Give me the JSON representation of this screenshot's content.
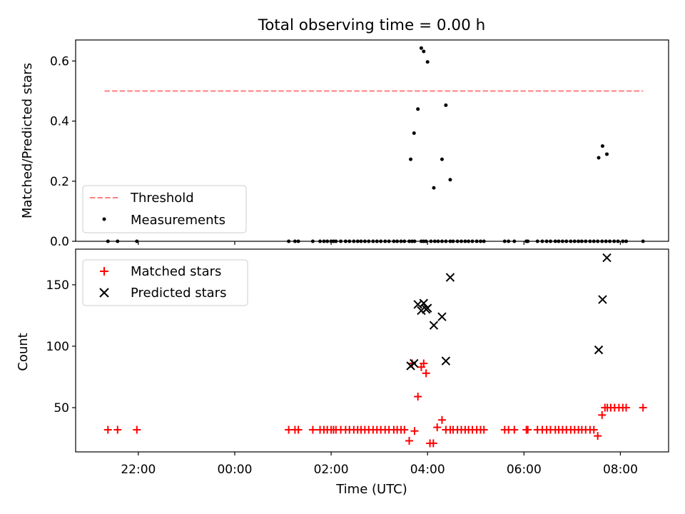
{
  "chart_data": [
    {
      "type": "scatter",
      "title": "Total observing time = 0.00 h",
      "xlabel": "",
      "ylabel": "Matched/Predicted stars",
      "ylim": [
        0,
        0.67
      ],
      "yticks": [
        0.0,
        0.2,
        0.4,
        0.6
      ],
      "ytick_labels": [
        "0.0",
        "0.2",
        "0.4",
        "0.6"
      ],
      "legend_placement": "lower-left",
      "threshold": {
        "name": "Threshold",
        "y": 0.5,
        "x_start": 21.3,
        "x_end": 32.47,
        "color": "#ff7f7f"
      },
      "measurements": {
        "name": "Measurements",
        "color": "#000000",
        "x": [
          21.37,
          21.57,
          21.97,
          25.12,
          25.25,
          25.32,
          25.62,
          25.77,
          25.85,
          25.92,
          26.0,
          26.05,
          26.1,
          26.2,
          26.3,
          26.38,
          26.47,
          26.55,
          26.62,
          26.7,
          26.78,
          26.87,
          26.95,
          27.03,
          27.12,
          27.2,
          27.3,
          27.37,
          27.45,
          27.52,
          27.62,
          27.68,
          27.73,
          27.87,
          27.92,
          27.97,
          28.07,
          28.15,
          28.22,
          28.3,
          28.38,
          28.47,
          28.53,
          28.62,
          28.7,
          28.78,
          28.85,
          28.93,
          29.02,
          29.1,
          29.17,
          29.6,
          29.68,
          29.8,
          30.05,
          30.08,
          30.28,
          30.38,
          30.47,
          30.55,
          30.65,
          30.72,
          30.8,
          30.88,
          30.97,
          31.05,
          31.13,
          31.2,
          31.28,
          31.37,
          31.45,
          31.53,
          31.62,
          31.7,
          31.78,
          31.87,
          31.95,
          32.05,
          32.12,
          32.47,
          27.65,
          27.72,
          27.8,
          27.87,
          27.92,
          28.0,
          28.13,
          28.3,
          28.38,
          28.47,
          31.55,
          31.63,
          31.72
        ],
        "y": [
          0,
          0,
          0,
          0,
          0,
          0,
          0,
          0,
          0,
          0,
          0,
          0,
          0,
          0,
          0,
          0,
          0,
          0,
          0,
          0,
          0,
          0,
          0,
          0,
          0,
          0,
          0,
          0,
          0,
          0,
          0,
          0,
          0,
          0,
          0,
          0,
          0,
          0,
          0,
          0,
          0,
          0,
          0,
          0,
          0,
          0,
          0,
          0,
          0,
          0,
          0,
          0,
          0,
          0,
          0,
          0,
          0,
          0,
          0,
          0,
          0,
          0,
          0,
          0,
          0,
          0,
          0,
          0,
          0,
          0,
          0,
          0,
          0,
          0,
          0,
          0,
          0,
          0,
          0,
          0,
          0.273,
          0.36,
          0.44,
          0.643,
          0.632,
          0.597,
          0.178,
          0.273,
          0.453,
          0.205,
          0.278,
          0.317,
          0.29
        ]
      }
    },
    {
      "type": "scatter",
      "xlabel": "Time (UTC)",
      "ylabel": "Count",
      "ylim": [
        14,
        179
      ],
      "yticks": [
        50,
        100,
        150
      ],
      "ytick_labels": [
        "50",
        "100",
        "150"
      ],
      "xticks": [
        22,
        24,
        26,
        28,
        30,
        32
      ],
      "xtick_labels": [
        "22:00",
        "00:00",
        "02:00",
        "04:00",
        "06:00",
        "08:00"
      ],
      "xlim": [
        20.7,
        33.0
      ],
      "legend_placement": "upper-left",
      "series": [
        {
          "name": "Matched stars",
          "marker": "plus",
          "color": "#ff0000",
          "x": [
            21.37,
            21.57,
            21.97,
            25.12,
            25.25,
            25.32,
            25.62,
            25.77,
            25.85,
            25.92,
            26.0,
            26.05,
            26.1,
            26.2,
            26.3,
            26.38,
            26.47,
            26.55,
            26.62,
            26.7,
            26.78,
            26.87,
            26.95,
            27.03,
            27.12,
            27.2,
            27.3,
            27.37,
            27.45,
            27.52,
            27.62,
            27.68,
            27.73,
            27.8,
            27.87,
            27.92,
            27.97,
            28.05,
            28.12,
            28.2,
            28.3,
            28.38,
            28.47,
            28.53,
            28.62,
            28.7,
            28.78,
            28.85,
            28.93,
            29.02,
            29.1,
            29.17,
            29.6,
            29.68,
            29.8,
            30.05,
            30.08,
            30.28,
            30.38,
            30.47,
            30.55,
            30.65,
            30.72,
            30.8,
            30.88,
            30.97,
            31.05,
            31.13,
            31.2,
            31.28,
            31.37,
            31.45,
            31.53,
            31.62,
            31.68,
            31.73,
            31.8,
            31.88,
            31.97,
            32.05,
            32.12,
            32.47
          ],
          "y": [
            32,
            32,
            32,
            32,
            32,
            32,
            32,
            32,
            32,
            32,
            32,
            32,
            32,
            32,
            32,
            32,
            32,
            32,
            32,
            32,
            32,
            32,
            32,
            32,
            32,
            32,
            32,
            32,
            32,
            32,
            23,
            86,
            31,
            59,
            83,
            86,
            78,
            21,
            21,
            34,
            40,
            32,
            32,
            32,
            32,
            32,
            32,
            32,
            32,
            32,
            32,
            32,
            32,
            32,
            32,
            32,
            32,
            32,
            32,
            32,
            32,
            32,
            32,
            32,
            32,
            32,
            32,
            32,
            32,
            32,
            32,
            32,
            27,
            44,
            50,
            50,
            50,
            50,
            50,
            50,
            50,
            50
          ]
        },
        {
          "name": "Predicted stars",
          "marker": "x",
          "color": "#000000",
          "x": [
            27.65,
            27.72,
            27.8,
            27.87,
            27.92,
            27.97,
            28.0,
            28.13,
            28.3,
            28.38,
            28.47,
            31.55,
            31.63,
            31.72
          ],
          "y": [
            84,
            86,
            134,
            129,
            135,
            130,
            131,
            117,
            124,
            88,
            156,
            97,
            138,
            172
          ]
        }
      ]
    }
  ]
}
